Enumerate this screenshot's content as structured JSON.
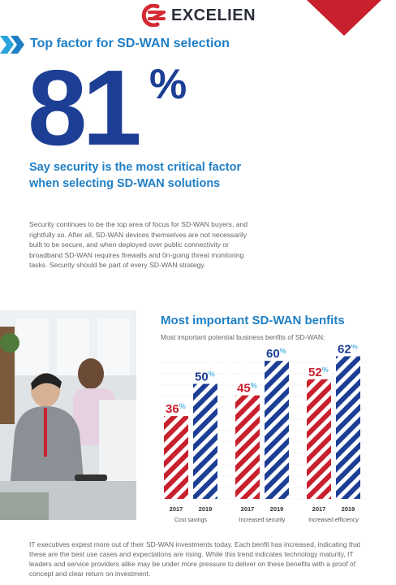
{
  "header": {
    "brand_name": "EXCELIEN",
    "logo_icon": "excelien-logo-icon",
    "brand_color": "#d42a34",
    "corner_color": "#c8202d"
  },
  "top": {
    "heading": "Top factor for SD-WAN selection",
    "big_value": "81",
    "big_unit": "%",
    "caption": "Say security is the most critical factor when selecting SD-WAN solutions",
    "paragraph": "Security continues to be the top area of focus for SD-WAN buyers, and rightfully so. After all, SD-WAN devices themselves are not necessarily built to be secure, and when deployed over public connectivity or broadband SD-WAN requires firewalls and 0n-going threat monitoring tasks. Security should be part of every SD-WAN strategy.",
    "heading_color": "#1f7fc6",
    "number_color": "#1c3f95"
  },
  "chart_data": {
    "type": "bar",
    "title": "Most important SD-WAN benfits",
    "subtitle": "Most important potential business benfits of SD-WAN:",
    "categories": [
      "Cost savings",
      "Increased security",
      "Increased efficiency"
    ],
    "years": [
      "2017",
      "2019"
    ],
    "series": [
      {
        "name": "2017",
        "values": [
          36,
          45,
          52
        ],
        "color": "#c8202d"
      },
      {
        "name": "2019",
        "values": [
          50,
          60,
          62
        ],
        "color": "#1c3f95"
      }
    ],
    "unit": "%",
    "ylim": [
      0,
      65
    ],
    "grid": true
  },
  "bottom": {
    "paragraph": "IT executives expest more out of their SD-WAN investments today. Each benfit has increased, indicating that these are the best use cases and expectations are rising. While this trend indicates technology maturity, IT leaders and service providers alike may be under more pressure to deliver on these benefits with a proof of concept and clear return on investment."
  }
}
